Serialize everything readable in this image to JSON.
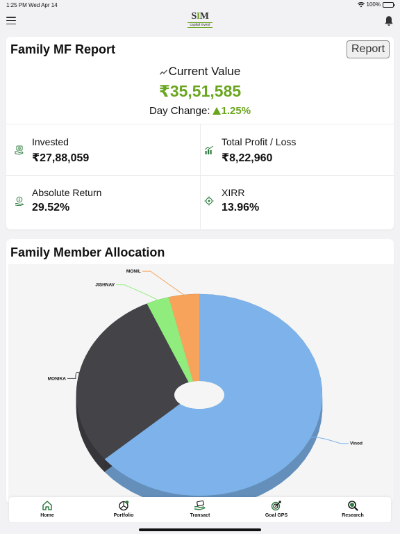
{
  "status_bar": {
    "time": "1:25 PM",
    "date": "Wed Apr 14",
    "battery": "100%"
  },
  "header": {
    "logo_mark_left": "S",
    "logo_mark_accent": "I",
    "logo_mark_right": "M",
    "logo_subtitle": "capital invest"
  },
  "report": {
    "title": "Family MF Report",
    "report_button": "Report",
    "current_value_label": "Current Value",
    "current_value": "₹35,51,585",
    "day_change_label": "Day Change:",
    "day_change_value": "1.25%",
    "metrics": [
      {
        "label": "Invested",
        "value": "₹27,88,059",
        "icon": "money-hand-icon"
      },
      {
        "label": "Total Profit / Loss",
        "value": "₹8,22,960",
        "icon": "bar-chart-icon"
      },
      {
        "label": "Absolute Return",
        "value": "29.52%",
        "icon": "coin-hand-icon"
      },
      {
        "label": "XIRR",
        "value": "13.96%",
        "icon": "target-icon"
      }
    ]
  },
  "allocation": {
    "title": "Family Member Allocation",
    "chart_data": {
      "type": "pie",
      "categories": [
        "Vinod",
        "MONIKA",
        "JISHNAV",
        "MONIL"
      ],
      "values": [
        64,
        29,
        3,
        4
      ],
      "colors": [
        "#7db3ea",
        "#434348",
        "#90ed7d",
        "#f7a35c"
      ],
      "style": "3d donut"
    }
  },
  "nav": {
    "items": [
      {
        "label": "Home",
        "icon": "home-icon"
      },
      {
        "label": "Portfolio",
        "icon": "pie-chart-icon"
      },
      {
        "label": "Transact",
        "icon": "transact-hand-icon"
      },
      {
        "label": "Goal GPS",
        "icon": "goal-gps-icon"
      },
      {
        "label": "Research",
        "icon": "research-magnifier-icon"
      }
    ]
  },
  "colors": {
    "accent": "#6aa51f",
    "icon_green": "#2d7a3e"
  }
}
